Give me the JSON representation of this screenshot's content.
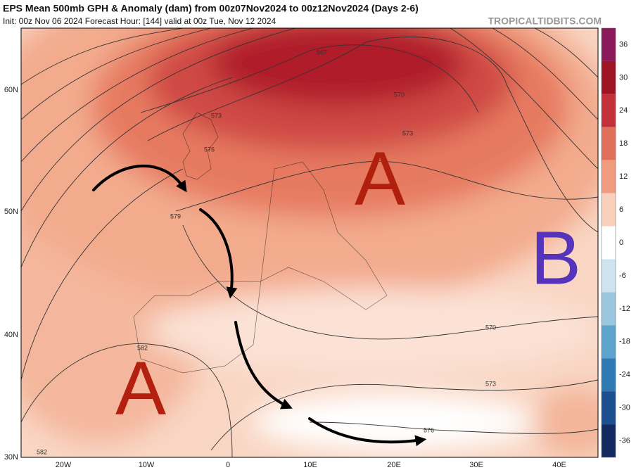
{
  "header": {
    "title": "EPS Mean 500mb GPH & Anomaly (dam) from 00z07Nov2024 to 00z12Nov2024 (Days 2-6)",
    "subtitle": "Init: 00z Nov 06 2024   Forecast Hour: [144]   valid at 00z Tue, Nov 12 2024",
    "watermark": "TROPICALTIDBITS.COM"
  },
  "map": {
    "lat_labels": [
      "60N",
      "50N",
      "40N",
      "30N"
    ],
    "lon_labels": [
      "20W",
      "10W",
      "0",
      "10E",
      "20E",
      "30E",
      "40E"
    ],
    "contour_labels": [
      "567",
      "570",
      "573",
      "573",
      "576",
      "579",
      "582",
      "582",
      "570",
      "573",
      "576"
    ],
    "annotations": [
      "A",
      "A",
      "B"
    ]
  },
  "colorbar": {
    "range": [
      -39,
      39
    ],
    "ticks": [
      36,
      30,
      24,
      18,
      12,
      6,
      0,
      -6,
      -12,
      -18,
      -24,
      -30,
      -36
    ],
    "colors": [
      "#8a1a5a",
      "#9e1422",
      "#c4303a",
      "#e0705a",
      "#f09a80",
      "#f9d0bb",
      "#ffffff",
      "#cfe3ee",
      "#9cc6dd",
      "#5ea3cb",
      "#2f7ab4",
      "#1b4f8f",
      "#122a60"
    ]
  }
}
